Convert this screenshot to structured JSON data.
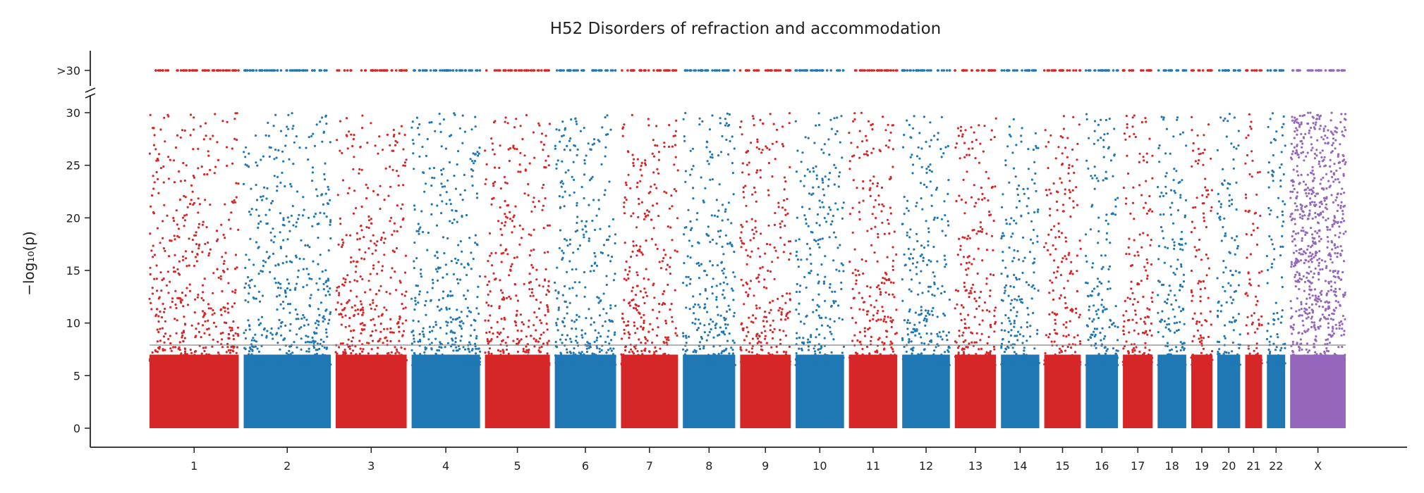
{
  "chart_data": {
    "type": "scatter",
    "title": "H52 Disorders of refraction and accommodation",
    "ylabel": "−log₁₀(p)",
    "xlabel": "",
    "ylim": [
      0,
      30
    ],
    "yticks": [
      "0",
      "5",
      "10",
      "15",
      "20",
      "25",
      "30"
    ],
    "overflow_label": ">30",
    "significance_line": 7.9,
    "grid": false,
    "legend": "none",
    "colors": [
      "#d62728",
      "#1f77b4"
    ],
    "x_color": "#9467bd",
    "line_color": "#888888",
    "chromosomes": [
      {
        "label": "1",
        "size": 249
      },
      {
        "label": "2",
        "size": 243
      },
      {
        "label": "3",
        "size": 198
      },
      {
        "label": "4",
        "size": 191
      },
      {
        "label": "5",
        "size": 181
      },
      {
        "label": "6",
        "size": 171
      },
      {
        "label": "7",
        "size": 159
      },
      {
        "label": "8",
        "size": 146
      },
      {
        "label": "9",
        "size": 141
      },
      {
        "label": "10",
        "size": 135
      },
      {
        "label": "11",
        "size": 135
      },
      {
        "label": "12",
        "size": 133
      },
      {
        "label": "13",
        "size": 115
      },
      {
        "label": "14",
        "size": 107
      },
      {
        "label": "15",
        "size": 102
      },
      {
        "label": "16",
        "size": 90
      },
      {
        "label": "17",
        "size": 83
      },
      {
        "label": "18",
        "size": 80
      },
      {
        "label": "19",
        "size": 59
      },
      {
        "label": "20",
        "size": 64
      },
      {
        "label": "21",
        "size": 47
      },
      {
        "label": "22",
        "size": 51
      },
      {
        "label": "X",
        "size": 155
      }
    ]
  }
}
